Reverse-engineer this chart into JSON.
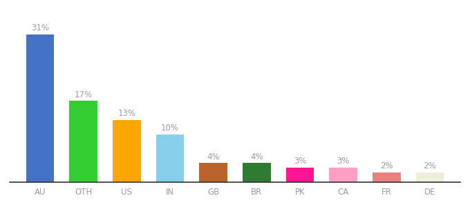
{
  "categories": [
    "AU",
    "OTH",
    "US",
    "IN",
    "GB",
    "BR",
    "PK",
    "CA",
    "FR",
    "DE"
  ],
  "values": [
    31,
    17,
    13,
    10,
    4,
    4,
    3,
    3,
    2,
    2
  ],
  "bar_colors": [
    "#4472C4",
    "#33CC33",
    "#FFA500",
    "#87CEEB",
    "#B8622C",
    "#2E7D32",
    "#FF1493",
    "#FF9EC4",
    "#E88080",
    "#F0EDD8"
  ],
  "labels": [
    "31%",
    "17%",
    "13%",
    "10%",
    "4%",
    "4%",
    "3%",
    "3%",
    "2%",
    "2%"
  ],
  "label_color": "#9999aa",
  "background_color": "#ffffff",
  "ylim": [
    0,
    36
  ],
  "label_fontsize": 8.5,
  "tick_fontsize": 8.5,
  "bar_width": 0.65
}
